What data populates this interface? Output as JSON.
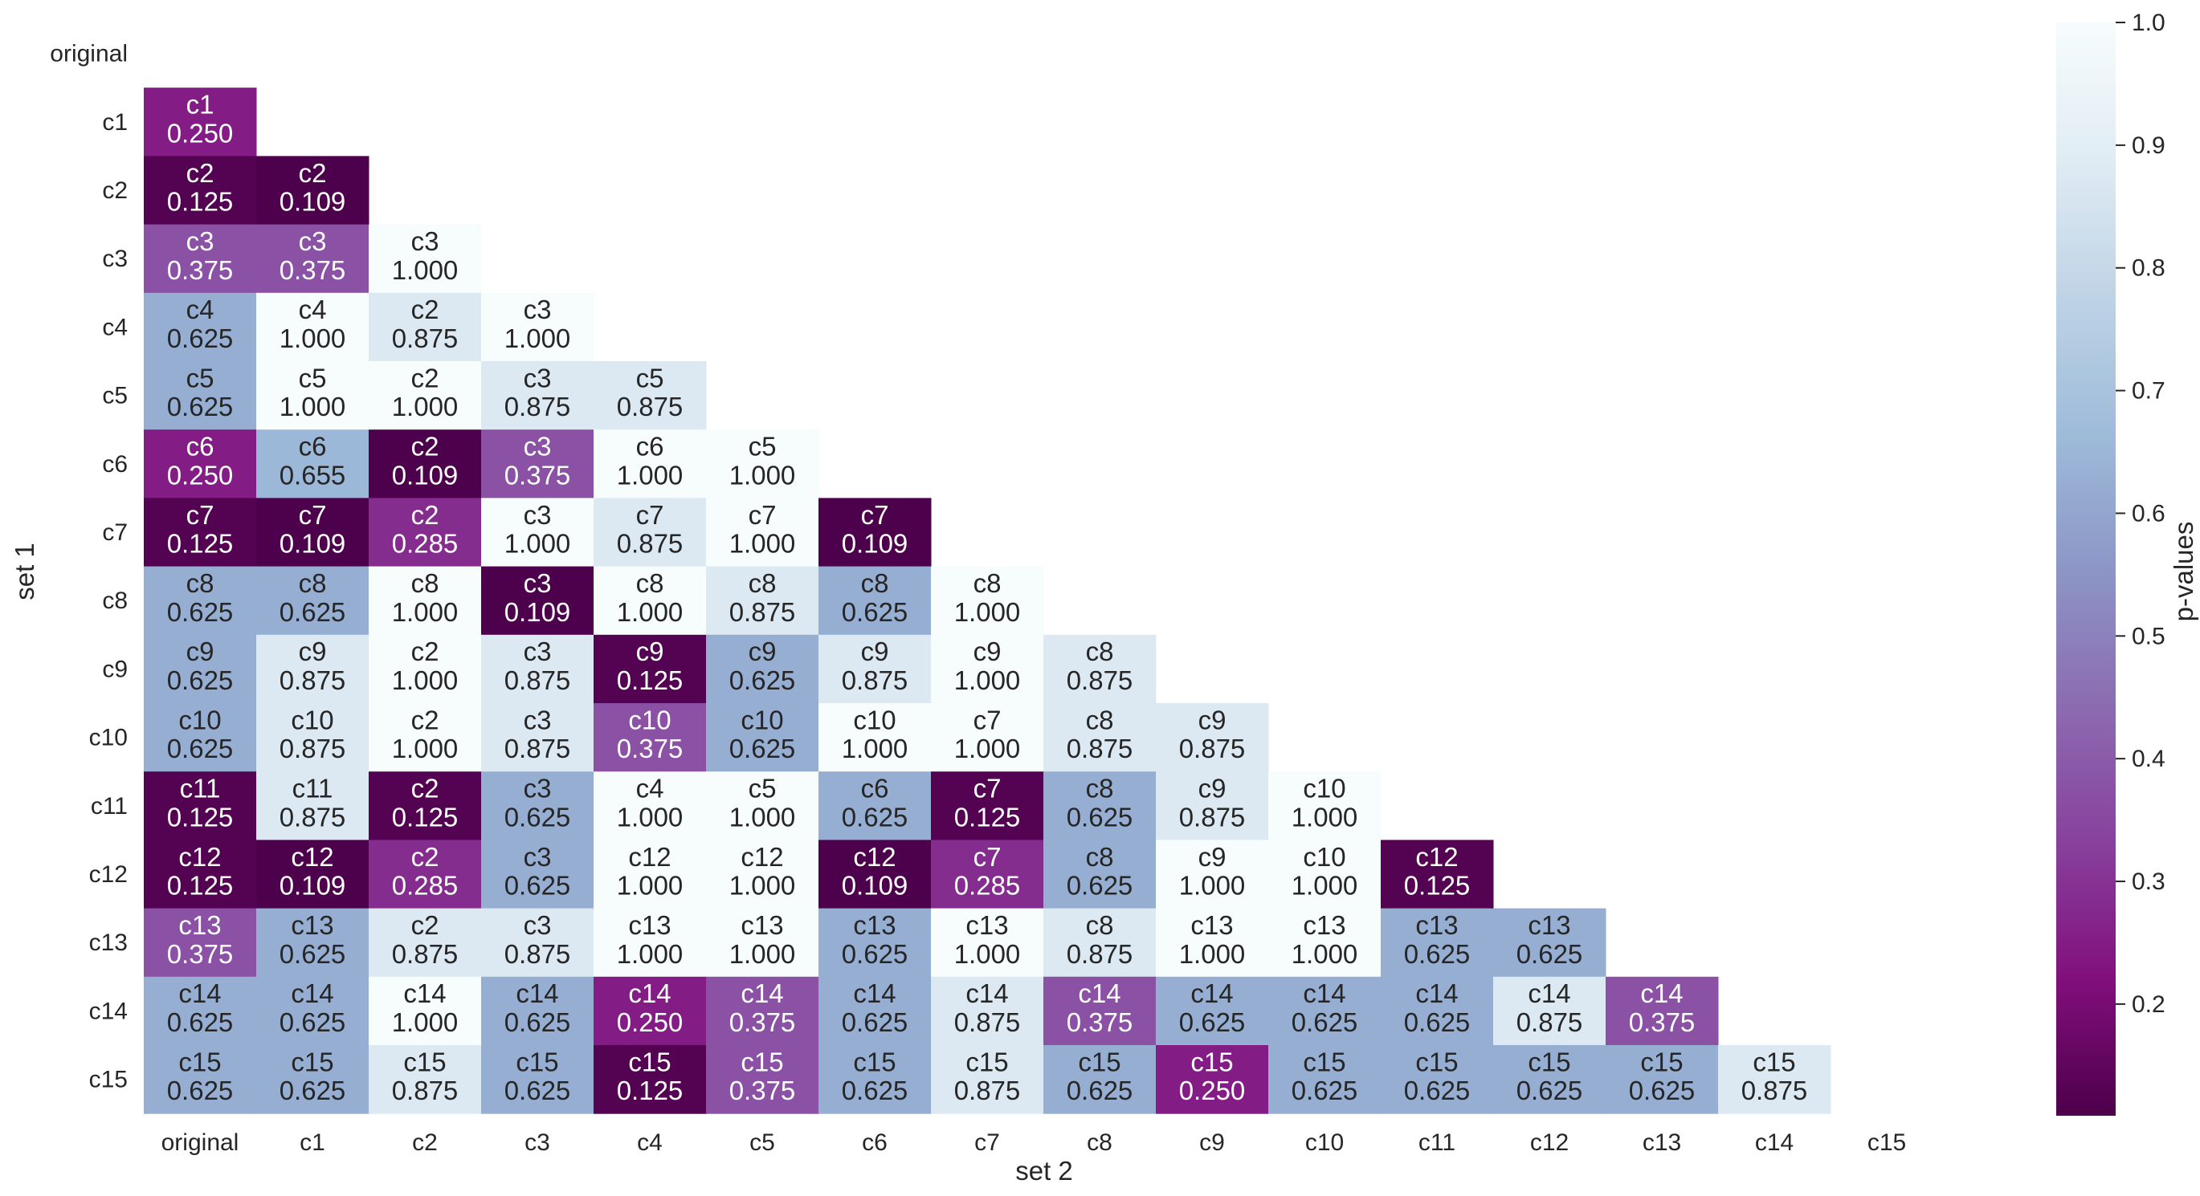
{
  "chart_data": {
    "type": "heatmap",
    "xlabel": "set 2",
    "ylabel": "set 1",
    "colorbar_label": "p-values",
    "colormap": "BuPu_r",
    "color_range": [
      0.109,
      1.0
    ],
    "colorbar_ticks": [
      "0.2",
      "0.3",
      "0.4",
      "0.5",
      "0.6",
      "0.7",
      "0.8",
      "0.9",
      "1.0"
    ],
    "colorbar_tick_values": [
      0.2,
      0.3,
      0.4,
      0.5,
      0.6,
      0.7,
      0.8,
      0.9,
      1.0
    ],
    "x_categories": [
      "original",
      "c1",
      "c2",
      "c3",
      "c4",
      "c5",
      "c6",
      "c7",
      "c8",
      "c9",
      "c10",
      "c11",
      "c12",
      "c13",
      "c14",
      "c15"
    ],
    "y_categories": [
      "original",
      "c1",
      "c2",
      "c3",
      "c4",
      "c5",
      "c6",
      "c7",
      "c8",
      "c9",
      "c10",
      "c11",
      "c12",
      "c13",
      "c14",
      "c15"
    ],
    "rows": [
      [],
      [
        {
          "label": "c1",
          "value": 0.25
        }
      ],
      [
        {
          "label": "c2",
          "value": 0.125
        },
        {
          "label": "c2",
          "value": 0.109
        }
      ],
      [
        {
          "label": "c3",
          "value": 0.375
        },
        {
          "label": "c3",
          "value": 0.375
        },
        {
          "label": "c3",
          "value": 1.0
        }
      ],
      [
        {
          "label": "c4",
          "value": 0.625
        },
        {
          "label": "c4",
          "value": 1.0
        },
        {
          "label": "c2",
          "value": 0.875
        },
        {
          "label": "c3",
          "value": 1.0
        }
      ],
      [
        {
          "label": "c5",
          "value": 0.625
        },
        {
          "label": "c5",
          "value": 1.0
        },
        {
          "label": "c2",
          "value": 1.0
        },
        {
          "label": "c3",
          "value": 0.875
        },
        {
          "label": "c5",
          "value": 0.875
        }
      ],
      [
        {
          "label": "c6",
          "value": 0.25
        },
        {
          "label": "c6",
          "value": 0.655
        },
        {
          "label": "c2",
          "value": 0.109
        },
        {
          "label": "c3",
          "value": 0.375
        },
        {
          "label": "c6",
          "value": 1.0
        },
        {
          "label": "c5",
          "value": 1.0
        }
      ],
      [
        {
          "label": "c7",
          "value": 0.125
        },
        {
          "label": "c7",
          "value": 0.109
        },
        {
          "label": "c2",
          "value": 0.285
        },
        {
          "label": "c3",
          "value": 1.0
        },
        {
          "label": "c7",
          "value": 0.875
        },
        {
          "label": "c7",
          "value": 1.0
        },
        {
          "label": "c7",
          "value": 0.109
        }
      ],
      [
        {
          "label": "c8",
          "value": 0.625
        },
        {
          "label": "c8",
          "value": 0.625
        },
        {
          "label": "c8",
          "value": 1.0
        },
        {
          "label": "c3",
          "value": 0.109
        },
        {
          "label": "c8",
          "value": 1.0
        },
        {
          "label": "c8",
          "value": 0.875
        },
        {
          "label": "c8",
          "value": 0.625
        },
        {
          "label": "c8",
          "value": 1.0
        }
      ],
      [
        {
          "label": "c9",
          "value": 0.625
        },
        {
          "label": "c9",
          "value": 0.875
        },
        {
          "label": "c2",
          "value": 1.0
        },
        {
          "label": "c3",
          "value": 0.875
        },
        {
          "label": "c9",
          "value": 0.125
        },
        {
          "label": "c9",
          "value": 0.625
        },
        {
          "label": "c9",
          "value": 0.875
        },
        {
          "label": "c9",
          "value": 1.0
        },
        {
          "label": "c8",
          "value": 0.875
        }
      ],
      [
        {
          "label": "c10",
          "value": 0.625
        },
        {
          "label": "c10",
          "value": 0.875
        },
        {
          "label": "c2",
          "value": 1.0
        },
        {
          "label": "c3",
          "value": 0.875
        },
        {
          "label": "c10",
          "value": 0.375
        },
        {
          "label": "c10",
          "value": 0.625
        },
        {
          "label": "c10",
          "value": 1.0
        },
        {
          "label": "c7",
          "value": 1.0
        },
        {
          "label": "c8",
          "value": 0.875
        },
        {
          "label": "c9",
          "value": 0.875
        }
      ],
      [
        {
          "label": "c11",
          "value": 0.125
        },
        {
          "label": "c11",
          "value": 0.875
        },
        {
          "label": "c2",
          "value": 0.125
        },
        {
          "label": "c3",
          "value": 0.625
        },
        {
          "label": "c4",
          "value": 1.0
        },
        {
          "label": "c5",
          "value": 1.0
        },
        {
          "label": "c6",
          "value": 0.625
        },
        {
          "label": "c7",
          "value": 0.125
        },
        {
          "label": "c8",
          "value": 0.625
        },
        {
          "label": "c9",
          "value": 0.875
        },
        {
          "label": "c10",
          "value": 1.0
        }
      ],
      [
        {
          "label": "c12",
          "value": 0.125
        },
        {
          "label": "c12",
          "value": 0.109
        },
        {
          "label": "c2",
          "value": 0.285
        },
        {
          "label": "c3",
          "value": 0.625
        },
        {
          "label": "c12",
          "value": 1.0
        },
        {
          "label": "c12",
          "value": 1.0
        },
        {
          "label": "c12",
          "value": 0.109
        },
        {
          "label": "c7",
          "value": 0.285
        },
        {
          "label": "c8",
          "value": 0.625
        },
        {
          "label": "c9",
          "value": 1.0
        },
        {
          "label": "c10",
          "value": 1.0
        },
        {
          "label": "c12",
          "value": 0.125
        }
      ],
      [
        {
          "label": "c13",
          "value": 0.375
        },
        {
          "label": "c13",
          "value": 0.625
        },
        {
          "label": "c2",
          "value": 0.875
        },
        {
          "label": "c3",
          "value": 0.875
        },
        {
          "label": "c13",
          "value": 1.0
        },
        {
          "label": "c13",
          "value": 1.0
        },
        {
          "label": "c13",
          "value": 0.625
        },
        {
          "label": "c13",
          "value": 1.0
        },
        {
          "label": "c8",
          "value": 0.875
        },
        {
          "label": "c13",
          "value": 1.0
        },
        {
          "label": "c13",
          "value": 1.0
        },
        {
          "label": "c13",
          "value": 0.625
        },
        {
          "label": "c13",
          "value": 0.625
        }
      ],
      [
        {
          "label": "c14",
          "value": 0.625
        },
        {
          "label": "c14",
          "value": 0.625
        },
        {
          "label": "c14",
          "value": 1.0
        },
        {
          "label": "c14",
          "value": 0.625
        },
        {
          "label": "c14",
          "value": 0.25
        },
        {
          "label": "c14",
          "value": 0.375
        },
        {
          "label": "c14",
          "value": 0.625
        },
        {
          "label": "c14",
          "value": 0.875
        },
        {
          "label": "c14",
          "value": 0.375
        },
        {
          "label": "c14",
          "value": 0.625
        },
        {
          "label": "c14",
          "value": 0.625
        },
        {
          "label": "c14",
          "value": 0.625
        },
        {
          "label": "c14",
          "value": 0.875
        },
        {
          "label": "c14",
          "value": 0.375
        }
      ],
      [
        {
          "label": "c15",
          "value": 0.625
        },
        {
          "label": "c15",
          "value": 0.625
        },
        {
          "label": "c15",
          "value": 0.875
        },
        {
          "label": "c15",
          "value": 0.625
        },
        {
          "label": "c15",
          "value": 0.125
        },
        {
          "label": "c15",
          "value": 0.375
        },
        {
          "label": "c15",
          "value": 0.625
        },
        {
          "label": "c15",
          "value": 0.875
        },
        {
          "label": "c15",
          "value": 0.625
        },
        {
          "label": "c15",
          "value": 0.25
        },
        {
          "label": "c15",
          "value": 0.625
        },
        {
          "label": "c15",
          "value": 0.625
        },
        {
          "label": "c15",
          "value": 0.625
        },
        {
          "label": "c15",
          "value": 0.625
        },
        {
          "label": "c15",
          "value": 0.875
        }
      ]
    ]
  }
}
